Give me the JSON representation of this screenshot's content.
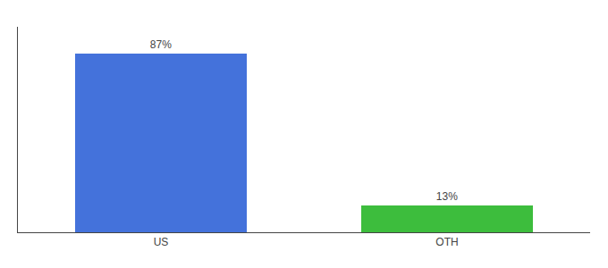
{
  "chart_data": {
    "type": "bar",
    "categories": [
      "US",
      "OTH"
    ],
    "values": [
      87,
      13
    ],
    "value_labels": [
      "87%",
      "13%"
    ],
    "colors": [
      "#4472db",
      "#3dbd3d"
    ],
    "ylim": [
      0,
      100
    ],
    "data_labels": true,
    "tick_labels": "x",
    "grid": false
  }
}
